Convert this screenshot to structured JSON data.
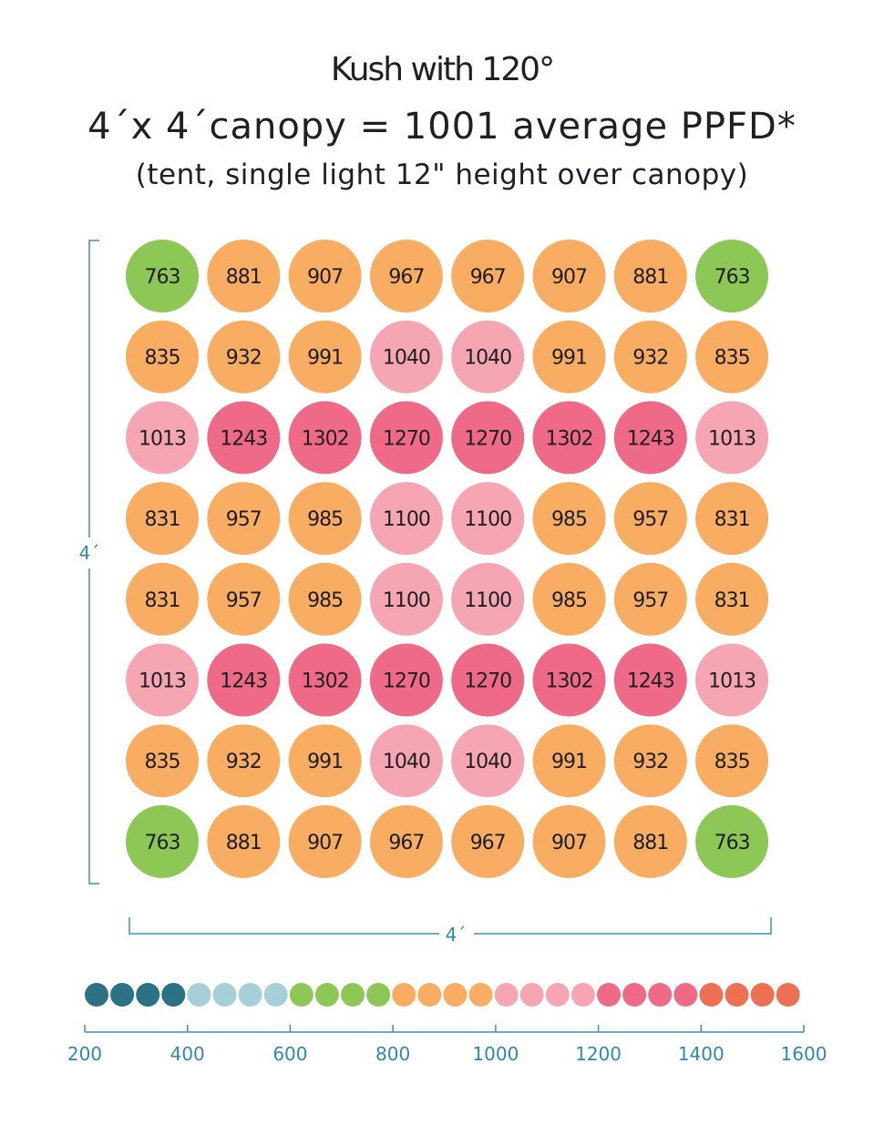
{
  "title": "Kush with 120°",
  "subtitle": "4´x 4´canopy = 1001 average PPFD*",
  "note": "(tent, single light 12\" height over canopy)",
  "chart_data": {
    "type": "heatmap",
    "dimension_labels": {
      "height": "4´",
      "width": "4´"
    },
    "grid": [
      [
        763,
        881,
        907,
        967,
        967,
        907,
        881,
        763
      ],
      [
        835,
        932,
        991,
        1040,
        1040,
        991,
        932,
        835
      ],
      [
        1013,
        1243,
        1302,
        1270,
        1270,
        1302,
        1243,
        1013
      ],
      [
        831,
        957,
        985,
        1100,
        1100,
        985,
        957,
        831
      ],
      [
        831,
        957,
        985,
        1100,
        1100,
        985,
        957,
        831
      ],
      [
        1013,
        1243,
        1302,
        1270,
        1270,
        1302,
        1243,
        1013
      ],
      [
        835,
        932,
        991,
        1040,
        1040,
        991,
        932,
        835
      ],
      [
        763,
        881,
        907,
        967,
        967,
        907,
        881,
        763
      ]
    ],
    "color_scale": [
      {
        "from": 200,
        "to": 400,
        "color": "#2b7285"
      },
      {
        "from": 400,
        "to": 600,
        "color": "#a6cfd8"
      },
      {
        "from": 600,
        "to": 800,
        "color": "#8dc857"
      },
      {
        "from": 800,
        "to": 1000,
        "color": "#f9ad62"
      },
      {
        "from": 1000,
        "to": 1200,
        "color": "#f6a6b2"
      },
      {
        "from": 1200,
        "to": 1400,
        "color": "#ef6a87"
      },
      {
        "from": 1400,
        "to": 1600,
        "color": "#ec7051"
      }
    ],
    "scale_ticks": [
      "200",
      "400",
      "600",
      "800",
      "1000",
      "1200",
      "1400",
      "1600"
    ],
    "scale_range": [
      200,
      1600
    ]
  },
  "colors": {
    "axis": "#3a8fbf",
    "tick_text": "#2f86b8",
    "value_text": "#1e1e24"
  }
}
